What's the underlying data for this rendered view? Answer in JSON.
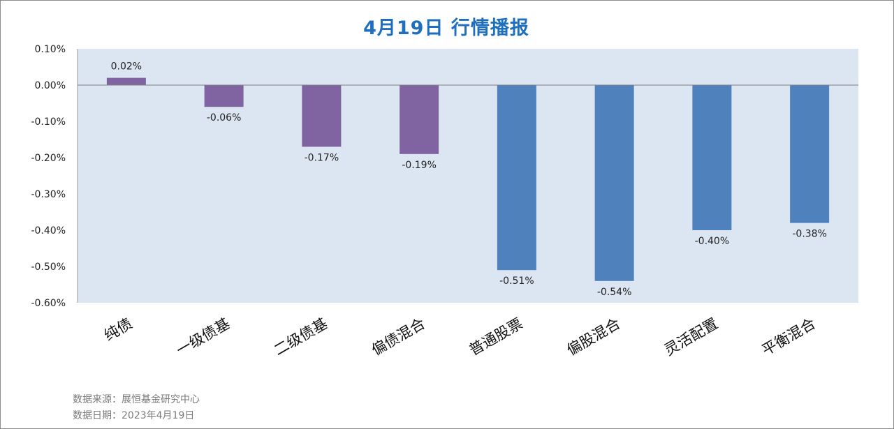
{
  "title": "4月19日  行情播报",
  "footer": {
    "source": "数据来源：展恒基金研究中心",
    "date": "数据日期：2023年4月19日"
  },
  "colors": {
    "plot_bg": "#dce6f2",
    "bond_bar": "#8064a2",
    "equity_bar": "#4f81bd"
  },
  "chart_data": {
    "type": "bar",
    "title": "4月19日  行情播报",
    "xlabel": "",
    "ylabel": "",
    "ylim": [
      -0.6,
      0.1
    ],
    "ytick_step": 0.1,
    "yticks": [
      "0.10%",
      "0.00%",
      "-0.10%",
      "-0.20%",
      "-0.30%",
      "-0.40%",
      "-0.50%",
      "-0.60%"
    ],
    "grid": false,
    "legend": "none",
    "categories": [
      "纯债",
      "一级债基",
      "二级债基",
      "偏债混合",
      "普通股票",
      "偏股混合",
      "灵活配置",
      "平衡混合"
    ],
    "values": [
      0.02,
      -0.06,
      -0.17,
      -0.19,
      -0.51,
      -0.54,
      -0.4,
      -0.38
    ],
    "labels": [
      "0.02%",
      "-0.06%",
      "-0.17%",
      "-0.19%",
      "-0.51%",
      "-0.54%",
      "-0.40%",
      "-0.38%"
    ],
    "bar_colors": [
      "#8064a2",
      "#8064a2",
      "#8064a2",
      "#8064a2",
      "#4f81bd",
      "#4f81bd",
      "#4f81bd",
      "#4f81bd"
    ]
  }
}
